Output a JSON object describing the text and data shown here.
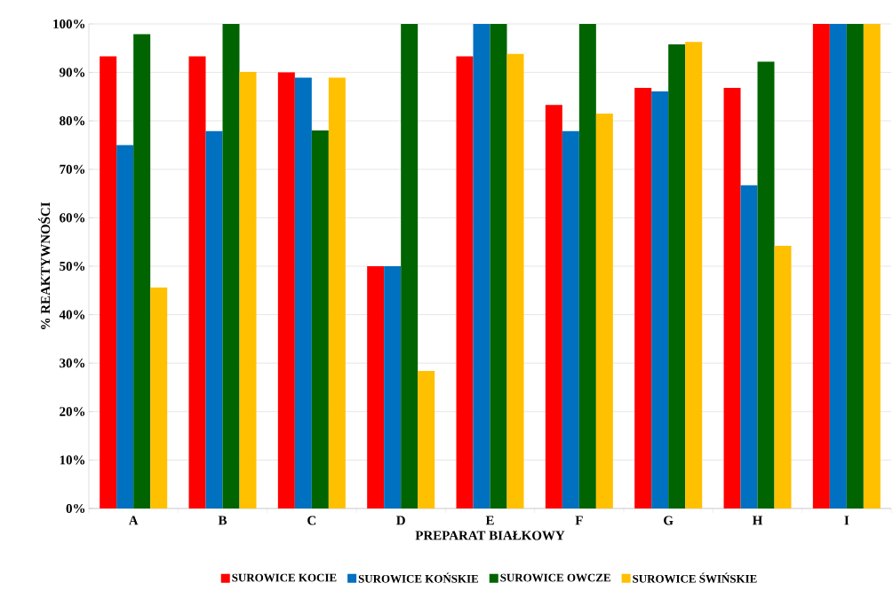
{
  "chart_data": {
    "type": "bar",
    "xlabel": "PREPARAT BIAŁKOWY",
    "ylabel": "% REAKTYWNOŚCI",
    "categories": [
      "A",
      "B",
      "C",
      "D",
      "E",
      "F",
      "G",
      "H",
      "I"
    ],
    "series": [
      {
        "name": "SUROWICE KOCIE",
        "color": "#ff0000",
        "values": [
          93.3,
          93.3,
          90,
          50,
          93.3,
          83.3,
          86.8,
          86.8,
          100
        ]
      },
      {
        "name": "SUROWICE KOŃSKIE",
        "color": "#0070c0",
        "values": [
          75,
          77.9,
          88.9,
          50,
          100,
          77.9,
          86.1,
          66.7,
          100
        ]
      },
      {
        "name": "SUROWICE OWCZE",
        "color": "#006400",
        "values": [
          97.9,
          100,
          78,
          100,
          100,
          100,
          95.8,
          92.2,
          100
        ]
      },
      {
        "name": "SUROWICE ŚWIŃSKIE",
        "color": "#ffc000",
        "values": [
          45.6,
          90.1,
          88.9,
          28.4,
          93.8,
          81.5,
          96.3,
          54.2,
          100
        ]
      }
    ],
    "ylim": [
      0,
      100
    ],
    "yticks": [
      {
        "value": 0,
        "label": "0%"
      },
      {
        "value": 10,
        "label": "10%"
      },
      {
        "value": 20,
        "label": "20%"
      },
      {
        "value": 30,
        "label": "30%"
      },
      {
        "value": 40,
        "label": "40%"
      },
      {
        "value": 50,
        "label": "50%"
      },
      {
        "value": 60,
        "label": "60%"
      },
      {
        "value": 70,
        "label": "70%"
      },
      {
        "value": 80,
        "label": "80%"
      },
      {
        "value": 90,
        "label": "90%"
      },
      {
        "value": 100,
        "label": "100%"
      }
    ],
    "grid": "y",
    "legend": "bottom"
  }
}
